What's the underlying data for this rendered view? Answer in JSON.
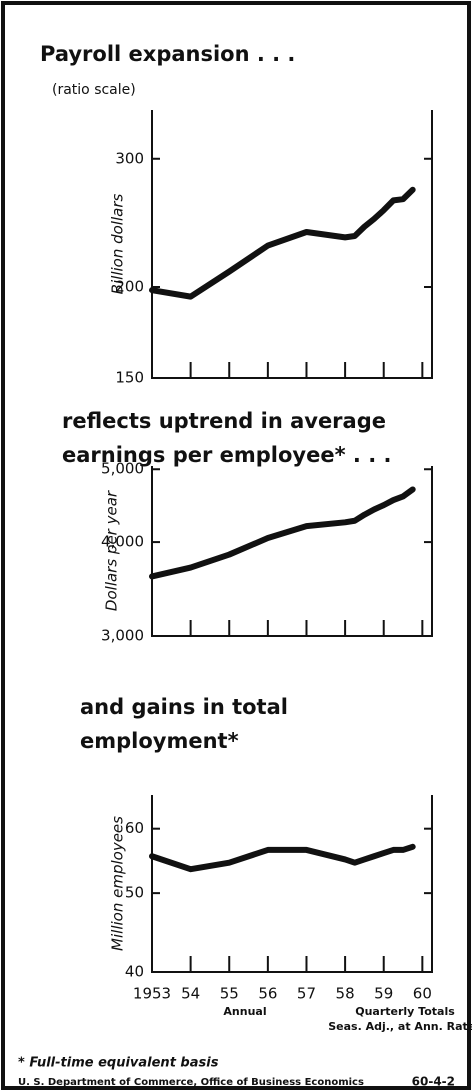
{
  "chart_data": [
    {
      "type": "line",
      "title": "Payroll expansion . . .",
      "subtitle": "(ratio scale)",
      "ylabel": "Billion dollars",
      "log_scale": true,
      "color": "#111111",
      "x": [
        1953,
        1954,
        1955,
        1956,
        1957,
        1958,
        1958.25,
        1958.5,
        1958.75,
        1959,
        1959.25,
        1959.5,
        1959.75
      ],
      "values": [
        198,
        194,
        210,
        228,
        238,
        234,
        235,
        242,
        248,
        255,
        263,
        264,
        272
      ],
      "xlim": [
        1953,
        1960.25
      ],
      "ylim": [
        150,
        350
      ],
      "yticks": [
        150,
        200,
        300
      ]
    },
    {
      "type": "line",
      "title_lines": [
        "reflects uptrend in average",
        "earnings per employee* . . ."
      ],
      "ylabel": "Dollars per year",
      "log_scale": true,
      "color": "#111111",
      "x": [
        1953,
        1954,
        1955,
        1956,
        1957,
        1958,
        1958.25,
        1958.5,
        1958.75,
        1959,
        1959.25,
        1959.5,
        1959.75
      ],
      "values": [
        3600,
        3700,
        3850,
        4050,
        4200,
        4250,
        4270,
        4350,
        4420,
        4480,
        4550,
        4600,
        4700
      ],
      "xlim": [
        1953,
        1960.25
      ],
      "ylim": [
        3000,
        5050
      ],
      "yticks": [
        {
          "value": 3000,
          "label": "3,000"
        },
        {
          "value": 4000,
          "label": "4,000"
        },
        {
          "value": 5000,
          "label": "5,000"
        }
      ]
    },
    {
      "type": "line",
      "title_lines": [
        "and gains in total",
        "employment*"
      ],
      "ylabel": "Million employees",
      "log_scale": true,
      "color": "#111111",
      "x": [
        1953,
        1954,
        1955,
        1956,
        1957,
        1958,
        1958.25,
        1958.5,
        1958.75,
        1959,
        1959.25,
        1959.5,
        1959.75
      ],
      "values": [
        55.5,
        53.5,
        54.5,
        56.5,
        56.5,
        55,
        54.5,
        55,
        55.5,
        56,
        56.5,
        56.5,
        57
      ],
      "xlim": [
        1953,
        1960.25
      ],
      "ylim": [
        40,
        66
      ],
      "yticks": [
        40,
        50,
        60
      ],
      "xticks": [
        {
          "value": 1953,
          "label": "1953"
        },
        {
          "value": 1954,
          "label": "54"
        },
        {
          "value": 1955,
          "label": "55"
        },
        {
          "value": 1956,
          "label": "56"
        },
        {
          "value": 1957,
          "label": "57"
        },
        {
          "value": 1958,
          "label": "58"
        },
        {
          "value": 1959,
          "label": "59"
        },
        {
          "value": 1960,
          "label": "60"
        }
      ],
      "annotations": [
        "Annual",
        "Quarterly Totals",
        "Seas. Adj., at Ann. Rates"
      ]
    }
  ],
  "footnote": "* Full-time equivalent basis",
  "source": "U. S. Department of Commerce, Office of Business Economics",
  "code": "60-4-2"
}
